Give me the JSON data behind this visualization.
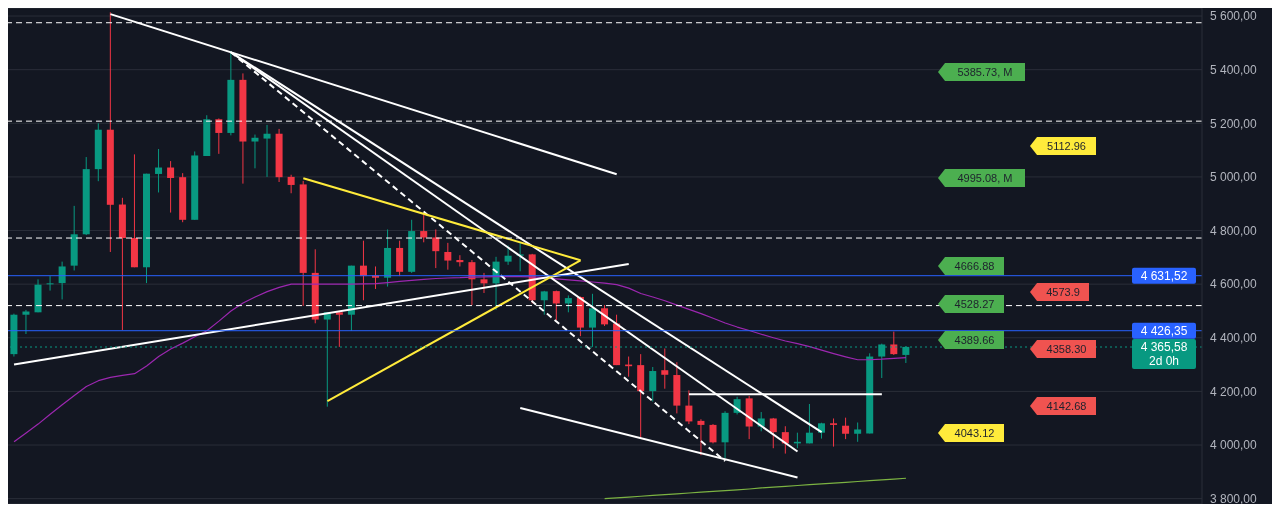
{
  "chart_data": {
    "type": "candlestick",
    "categories": [
      null,
      null,
      null,
      null,
      null,
      null,
      null,
      null,
      null,
      null,
      null,
      null,
      null,
      null,
      null,
      null,
      null,
      null,
      null,
      null,
      null,
      null,
      null,
      null,
      null,
      null,
      null,
      null,
      null,
      null,
      null,
      null,
      null,
      null,
      null,
      null,
      null,
      null,
      null,
      null,
      null,
      null,
      null,
      null,
      null,
      null,
      null,
      null,
      null,
      null,
      null,
      null,
      null,
      null,
      null,
      null,
      null,
      null,
      null,
      null,
      null,
      null,
      null,
      null,
      null,
      null,
      null,
      null,
      null,
      null,
      null,
      null,
      null,
      null,
      null
    ],
    "ohlc": [
      [
        4339,
        4490,
        4330,
        4486
      ],
      [
        4486,
        4504,
        4414,
        4498
      ],
      [
        4495,
        4618,
        4495,
        4598
      ],
      [
        4600,
        4630,
        4576,
        4603
      ],
      [
        4604,
        4684,
        4543,
        4666
      ],
      [
        4669,
        4892,
        4651,
        4786
      ],
      [
        4786,
        5074,
        4783,
        5029
      ],
      [
        5029,
        5200,
        4984,
        5176
      ],
      [
        5176,
        5614,
        4720,
        4896
      ],
      [
        4897,
        4922,
        4429,
        4772
      ],
      [
        4772,
        5084,
        4663,
        4663
      ],
      [
        4663,
        5012,
        4604,
        5012
      ],
      [
        5011,
        5104,
        4942,
        5035
      ],
      [
        5035,
        5059,
        4867,
        4996
      ],
      [
        4999,
        5014,
        4831,
        4840
      ],
      [
        4840,
        5095,
        4840,
        5080
      ],
      [
        5078,
        5230,
        5078,
        5215
      ],
      [
        5215,
        5218,
        5086,
        5164
      ],
      [
        5164,
        5470,
        5155,
        5362
      ],
      [
        5362,
        5386,
        4975,
        5132
      ],
      [
        5132,
        5158,
        5032,
        5146
      ],
      [
        5143,
        5194,
        5000,
        5161
      ],
      [
        5161,
        5179,
        4981,
        4999
      ],
      [
        5000,
        5008,
        4939,
        4970
      ],
      [
        4972,
        4985,
        4519,
        4642
      ],
      [
        4642,
        4730,
        4454,
        4468
      ],
      [
        4468,
        4495,
        4143,
        4495
      ],
      [
        4495,
        4497,
        4366,
        4486
      ],
      [
        4486,
        4669,
        4426,
        4669
      ],
      [
        4669,
        4762,
        4540,
        4630
      ],
      [
        4633,
        4666,
        4582,
        4624
      ],
      [
        4624,
        4804,
        4591,
        4735
      ],
      [
        4735,
        4762,
        4630,
        4646
      ],
      [
        4646,
        4840,
        4642,
        4798
      ],
      [
        4798,
        4858,
        4756,
        4774
      ],
      [
        4774,
        4804,
        4660,
        4723
      ],
      [
        4720,
        4754,
        4654,
        4688
      ],
      [
        4690,
        4708,
        4666,
        4682
      ],
      [
        4682,
        4690,
        4522,
        4618
      ],
      [
        4618,
        4642,
        4567,
        4603
      ],
      [
        4603,
        4702,
        4504,
        4684
      ],
      [
        4684,
        4744,
        4672,
        4706
      ],
      [
        4706,
        4754,
        4648,
        4711
      ],
      [
        4711,
        4713,
        4528,
        4540
      ],
      [
        4540,
        4575,
        4486,
        4573
      ],
      [
        4574,
        4576,
        4466,
        4528
      ],
      [
        4528,
        4558,
        4495,
        4548
      ],
      [
        4552,
        4554,
        4406,
        4438
      ],
      [
        4438,
        4564,
        4366,
        4510
      ],
      [
        4510,
        4522,
        4444,
        4450
      ],
      [
        4453,
        4486,
        4298,
        4298
      ],
      [
        4300,
        4330,
        4255,
        4294
      ],
      [
        4298,
        4339,
        4027,
        4201
      ],
      [
        4201,
        4291,
        4162,
        4276
      ],
      [
        4279,
        4360,
        4210,
        4262
      ],
      [
        4261,
        4309,
        4118,
        4147
      ],
      [
        4147,
        4204,
        4078,
        4088
      ],
      [
        4090,
        4096,
        3962,
        4075
      ],
      [
        4075,
        4078,
        4006,
        4010
      ],
      [
        4010,
        4126,
        3950,
        4120
      ],
      [
        4120,
        4180,
        4114,
        4171
      ],
      [
        4174,
        4183,
        4022,
        4069
      ],
      [
        4069,
        4123,
        4051,
        4099
      ],
      [
        4099,
        4101,
        3988,
        4048
      ],
      [
        4048,
        4070,
        3968,
        4006
      ],
      [
        4006,
        4046,
        3988,
        4012
      ],
      [
        4006,
        4153,
        4006,
        4046
      ],
      [
        4046,
        4083,
        4024,
        4081
      ],
      [
        4081,
        4099,
        3994,
        4075
      ],
      [
        4072,
        4102,
        4022,
        4042
      ],
      [
        4042,
        4084,
        4012,
        4058
      ],
      [
        4043,
        4342,
        4043,
        4330
      ],
      [
        4330,
        4378,
        4250,
        4375
      ],
      [
        4375,
        4423,
        4336,
        4339
      ],
      [
        4336,
        4368,
        4306,
        4366
      ]
    ],
    "series": [
      {
        "type": "line",
        "color": "#9c27b0",
        "values": [
          4012,
          4045,
          4078,
          4115,
          4150,
          4185,
          4218,
          4240,
          4252,
          4260,
          4266,
          4295,
          4330,
          4358,
          4380,
          4404,
          4426,
          4462,
          4500,
          4530,
          4552,
          4572,
          4588,
          4600,
          4600,
          4600,
          4600,
          4600,
          4600,
          4601,
          4602,
          4606,
          4610,
          4614,
          4618,
          4621,
          4623,
          4624,
          4626,
          4627,
          4628,
          4628,
          4628,
          4627,
          4624,
          4620,
          4616,
          4612,
          4608,
          4604,
          4598,
          4585,
          4565,
          4552,
          4538,
          4522,
          4506,
          4490,
          4473,
          4455,
          4440,
          4427,
          4413,
          4400,
          4388,
          4378,
          4367,
          4354,
          4341,
          4329,
          4318,
          4318,
          4320,
          4323,
          4326
        ]
      },
      {
        "type": "line",
        "color": "#7cb342",
        "values": [
          null,
          null,
          null,
          null,
          null,
          null,
          null,
          null,
          null,
          null,
          null,
          null,
          null,
          null,
          null,
          null,
          null,
          null,
          null,
          null,
          null,
          null,
          null,
          null,
          null,
          null,
          null,
          null,
          null,
          null,
          null,
          null,
          null,
          null,
          null,
          null,
          null,
          null,
          null,
          null,
          null,
          null,
          null,
          null,
          null,
          null,
          null,
          null,
          null,
          3800,
          3803,
          3806,
          3809,
          3812,
          3815,
          3818,
          3821,
          3824,
          3827,
          3830,
          3833,
          3836,
          3840,
          3843,
          3846,
          3849,
          3852,
          3855,
          3858,
          3861,
          3864,
          3867,
          3870,
          3873,
          3876
        ]
      },
      {
        "type": "line",
        "color": "#ffffff",
        "values": [
          null,
          null,
          null,
          null,
          null,
          null,
          null,
          null,
          5607,
          null,
          null,
          null,
          null,
          null,
          null,
          null,
          null,
          null,
          null,
          null,
          null,
          null,
          null,
          null,
          null,
          null,
          null,
          null,
          null,
          null,
          null,
          null,
          null,
          null,
          null,
          null,
          null,
          null,
          null,
          null,
          null,
          null,
          null,
          null,
          null,
          null,
          null,
          null,
          null,
          null,
          5010,
          null,
          null,
          null,
          null,
          null,
          null,
          null,
          null,
          null,
          null,
          null,
          null,
          null,
          null,
          null,
          null,
          null,
          null,
          null,
          null,
          null,
          null,
          null,
          null
        ]
      },
      {
        "type": "line",
        "color": "#ffffff",
        "values": [
          4300,
          null,
          null,
          null,
          null,
          null,
          null,
          null,
          null,
          null,
          null,
          null,
          null,
          null,
          null,
          null,
          null,
          null,
          null,
          null,
          null,
          null,
          null,
          null,
          null,
          null,
          null,
          null,
          null,
          null,
          null,
          null,
          null,
          null,
          null,
          null,
          null,
          null,
          null,
          null,
          null,
          null,
          null,
          null,
          null,
          null,
          null,
          null,
          null,
          null,
          null,
          4675,
          null,
          null,
          null,
          null,
          null,
          null,
          null,
          null,
          null,
          null,
          null,
          null,
          null,
          null,
          null,
          null,
          null,
          null,
          null,
          null,
          null,
          null,
          null
        ]
      },
      {
        "type": "line",
        "color": "#ffffff",
        "values": [
          null,
          null,
          null,
          null,
          null,
          null,
          null,
          null,
          null,
          null,
          null,
          null,
          null,
          null,
          null,
          null,
          null,
          null,
          5465,
          null,
          null,
          null,
          null,
          null,
          null,
          null,
          null,
          null,
          null,
          null,
          null,
          null,
          null,
          null,
          null,
          null,
          null,
          null,
          null,
          null,
          null,
          null,
          null,
          null,
          null,
          null,
          null,
          null,
          null,
          null,
          null,
          null,
          null,
          null,
          null,
          null,
          null,
          null,
          null,
          null,
          null,
          null,
          null,
          null,
          null,
          null,
          null,
          4048,
          null,
          null,
          null,
          null,
          null,
          null,
          null
        ]
      },
      {
        "type": "line",
        "color": "#ffffff",
        "values": [
          null,
          null,
          null,
          null,
          null,
          null,
          null,
          null,
          null,
          null,
          null,
          null,
          null,
          null,
          null,
          null,
          null,
          null,
          5465,
          null,
          null,
          null,
          null,
          null,
          null,
          null,
          null,
          null,
          null,
          null,
          null,
          null,
          null,
          null,
          null,
          null,
          null,
          null,
          null,
          null,
          null,
          null,
          null,
          null,
          null,
          null,
          null,
          null,
          null,
          null,
          null,
          null,
          null,
          null,
          null,
          null,
          null,
          null,
          null,
          null,
          null,
          null,
          null,
          null,
          null,
          3976,
          null,
          null,
          null,
          null,
          null,
          null,
          null,
          null,
          null
        ]
      },
      {
        "type": "line",
        "color": "#ffffff",
        "line_style": "dashed",
        "values": [
          null,
          null,
          null,
          null,
          null,
          null,
          null,
          null,
          null,
          null,
          null,
          null,
          null,
          null,
          null,
          null,
          null,
          null,
          5465,
          null,
          null,
          null,
          null,
          null,
          null,
          null,
          null,
          null,
          null,
          null,
          null,
          null,
          null,
          null,
          null,
          null,
          null,
          null,
          null,
          null,
          null,
          null,
          null,
          null,
          null,
          null,
          null,
          null,
          null,
          null,
          null,
          null,
          null,
          null,
          null,
          null,
          null,
          null,
          null,
          3940,
          null,
          null,
          null,
          null,
          null,
          null,
          null,
          null,
          null,
          null,
          null,
          null,
          null,
          null,
          null
        ]
      },
      {
        "type": "line",
        "color": "#ffffff",
        "values": [
          null,
          null,
          null,
          null,
          null,
          null,
          null,
          null,
          null,
          null,
          null,
          null,
          null,
          null,
          null,
          null,
          null,
          null,
          null,
          null,
          null,
          null,
          null,
          null,
          null,
          null,
          null,
          null,
          null,
          null,
          null,
          null,
          null,
          null,
          null,
          null,
          null,
          null,
          null,
          null,
          null,
          null,
          4138,
          null,
          null,
          null,
          null,
          null,
          null,
          null,
          null,
          null,
          null,
          null,
          null,
          null,
          null,
          null,
          null,
          null,
          null,
          null,
          null,
          null,
          null,
          3879,
          null,
          null,
          null,
          null,
          null,
          null,
          null,
          null,
          null
        ]
      },
      {
        "type": "line",
        "color": "#ffffff",
        "values": [
          null,
          null,
          null,
          null,
          null,
          null,
          null,
          null,
          null,
          null,
          null,
          null,
          null,
          null,
          null,
          null,
          null,
          null,
          null,
          null,
          null,
          null,
          null,
          null,
          null,
          null,
          null,
          null,
          null,
          null,
          null,
          null,
          null,
          null,
          null,
          null,
          null,
          null,
          null,
          null,
          null,
          null,
          null,
          null,
          null,
          null,
          null,
          null,
          null,
          null,
          null,
          null,
          null,
          null,
          null,
          null,
          4189,
          null,
          null,
          null,
          null,
          null,
          null,
          null,
          null,
          null,
          null,
          null,
          null,
          null,
          null,
          null,
          4189,
          null,
          null
        ]
      },
      {
        "type": "line",
        "color": "#ffeb3b",
        "values": [
          null,
          null,
          null,
          null,
          null,
          null,
          null,
          null,
          null,
          null,
          null,
          null,
          null,
          null,
          null,
          null,
          null,
          null,
          null,
          null,
          null,
          null,
          null,
          null,
          4995,
          null,
          null,
          null,
          null,
          null,
          null,
          null,
          null,
          null,
          null,
          null,
          null,
          null,
          null,
          null,
          null,
          null,
          null,
          null,
          null,
          null,
          null,
          4689,
          null,
          null,
          null,
          null,
          null,
          null,
          null,
          null,
          null,
          null,
          null,
          null,
          null,
          null,
          null,
          null,
          null,
          null,
          null,
          null,
          null,
          null,
          null,
          null,
          null,
          null,
          null
        ]
      },
      {
        "type": "line",
        "color": "#ffeb3b",
        "values": [
          null,
          null,
          null,
          null,
          null,
          null,
          null,
          null,
          null,
          null,
          null,
          null,
          null,
          null,
          null,
          null,
          null,
          null,
          null,
          null,
          null,
          null,
          null,
          null,
          null,
          null,
          4164,
          null,
          null,
          null,
          null,
          null,
          null,
          null,
          null,
          null,
          null,
          null,
          null,
          null,
          null,
          null,
          null,
          null,
          null,
          null,
          null,
          4689,
          null,
          null,
          null,
          null,
          null,
          null,
          null,
          null,
          null,
          null,
          null,
          null,
          null,
          null,
          null,
          null,
          null,
          null,
          null,
          null,
          null,
          null,
          null,
          null,
          null,
          null,
          null
        ]
      }
    ],
    "ylim": [
      3780,
      5630
    ],
    "yticks": [
      {
        "value": 3800,
        "label": "3 800,00"
      },
      {
        "value": 4000,
        "label": "4 000,00"
      },
      {
        "value": 4200,
        "label": "4 200,00"
      },
      {
        "value": 4400,
        "label": "4 400,00"
      },
      {
        "value": 4600,
        "label": "4 600,00"
      },
      {
        "value": 4800,
        "label": "4 800,00"
      },
      {
        "value": 5000,
        "label": "5 000,00"
      },
      {
        "value": 5200,
        "label": "5 200,00"
      },
      {
        "value": 5400,
        "label": "5 400,00"
      },
      {
        "value": 5600,
        "label": "5 600,00"
      }
    ],
    "tick_labels": "y",
    "grid": "y",
    "ref_lines": [
      {
        "axis": "y",
        "value": 5575,
        "color": "#ffffff",
        "line_style": "dashed"
      },
      {
        "axis": "y",
        "value": 5208,
        "color": "#ffffff",
        "line_style": "dashed"
      },
      {
        "axis": "y",
        "value": 4772,
        "color": "#ffffff",
        "line_style": "dashed"
      },
      {
        "axis": "y",
        "value": 4520,
        "color": "#ffffff",
        "line_style": "dashed"
      },
      {
        "axis": "y",
        "value": 4631.52,
        "label": "4 631,52",
        "color": "#2962ff",
        "line_style": "solid"
      },
      {
        "axis": "y",
        "value": 4426.35,
        "label": "4 426,35",
        "color": "#2962ff",
        "line_style": "solid"
      },
      {
        "axis": "y",
        "value": 4365.58,
        "label": "4 365,58",
        "color": "#089981",
        "line_style": "dotted"
      }
    ],
    "annotations": [
      "5385.73, M",
      "4995.08, M",
      "4666.88",
      "4528.27",
      "4389.66",
      "4043.12",
      "5112.96",
      "4573.9",
      "4358.30",
      "4142.68",
      "2d 0h"
    ]
  }
}
